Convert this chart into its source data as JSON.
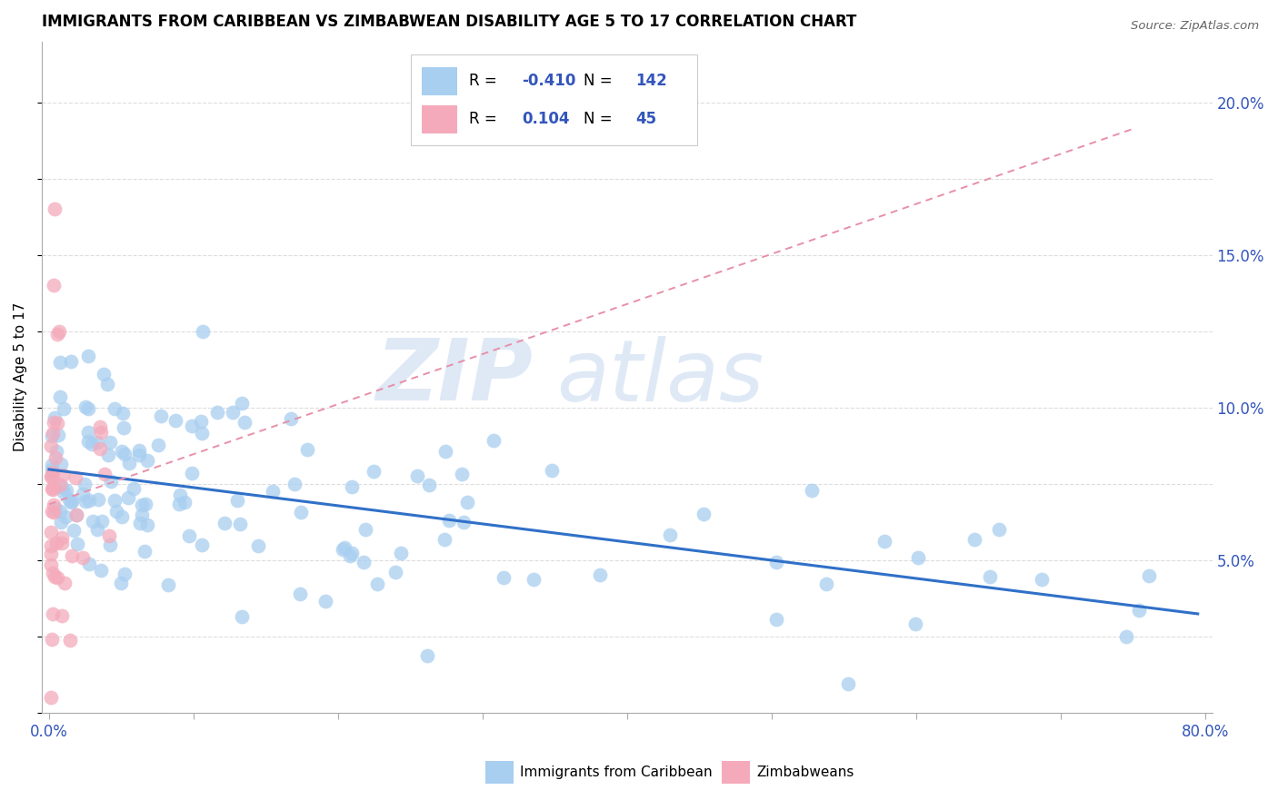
{
  "title": "IMMIGRANTS FROM CARIBBEAN VS ZIMBABWEAN DISABILITY AGE 5 TO 17 CORRELATION CHART",
  "source": "Source: ZipAtlas.com",
  "ylabel": "Disability Age 5 to 17",
  "xlim": [
    -0.005,
    0.805
  ],
  "ylim": [
    0.0,
    0.22
  ],
  "xticks": [
    0.0,
    0.1,
    0.2,
    0.3,
    0.4,
    0.5,
    0.6,
    0.7,
    0.8
  ],
  "xtick_labels": [
    "0.0%",
    "",
    "",
    "",
    "",
    "",
    "",
    "",
    "80.0%"
  ],
  "yticks_right": [
    0.05,
    0.1,
    0.15,
    0.2
  ],
  "ytick_labels_right": [
    "5.0%",
    "10.0%",
    "15.0%",
    "20.0%"
  ],
  "blue_color": "#A8CEF0",
  "pink_color": "#F4AABB",
  "trend_blue_color": "#3070C8",
  "trend_pink_color": "#E890A8",
  "watermark_zip": "ZIP",
  "watermark_atlas": "atlas",
  "legend_blue_r": "-0.410",
  "legend_blue_n": "142",
  "legend_pink_r": "0.104",
  "legend_pink_n": "45",
  "legend_label_blue": "Immigrants from Caribbean",
  "legend_label_pink": "Zimbabweans",
  "r_n_color": "#3355BB",
  "grid_color": "#DDDDDD",
  "axis_color": "#AAAAAA",
  "tick_label_color": "#3355BB"
}
